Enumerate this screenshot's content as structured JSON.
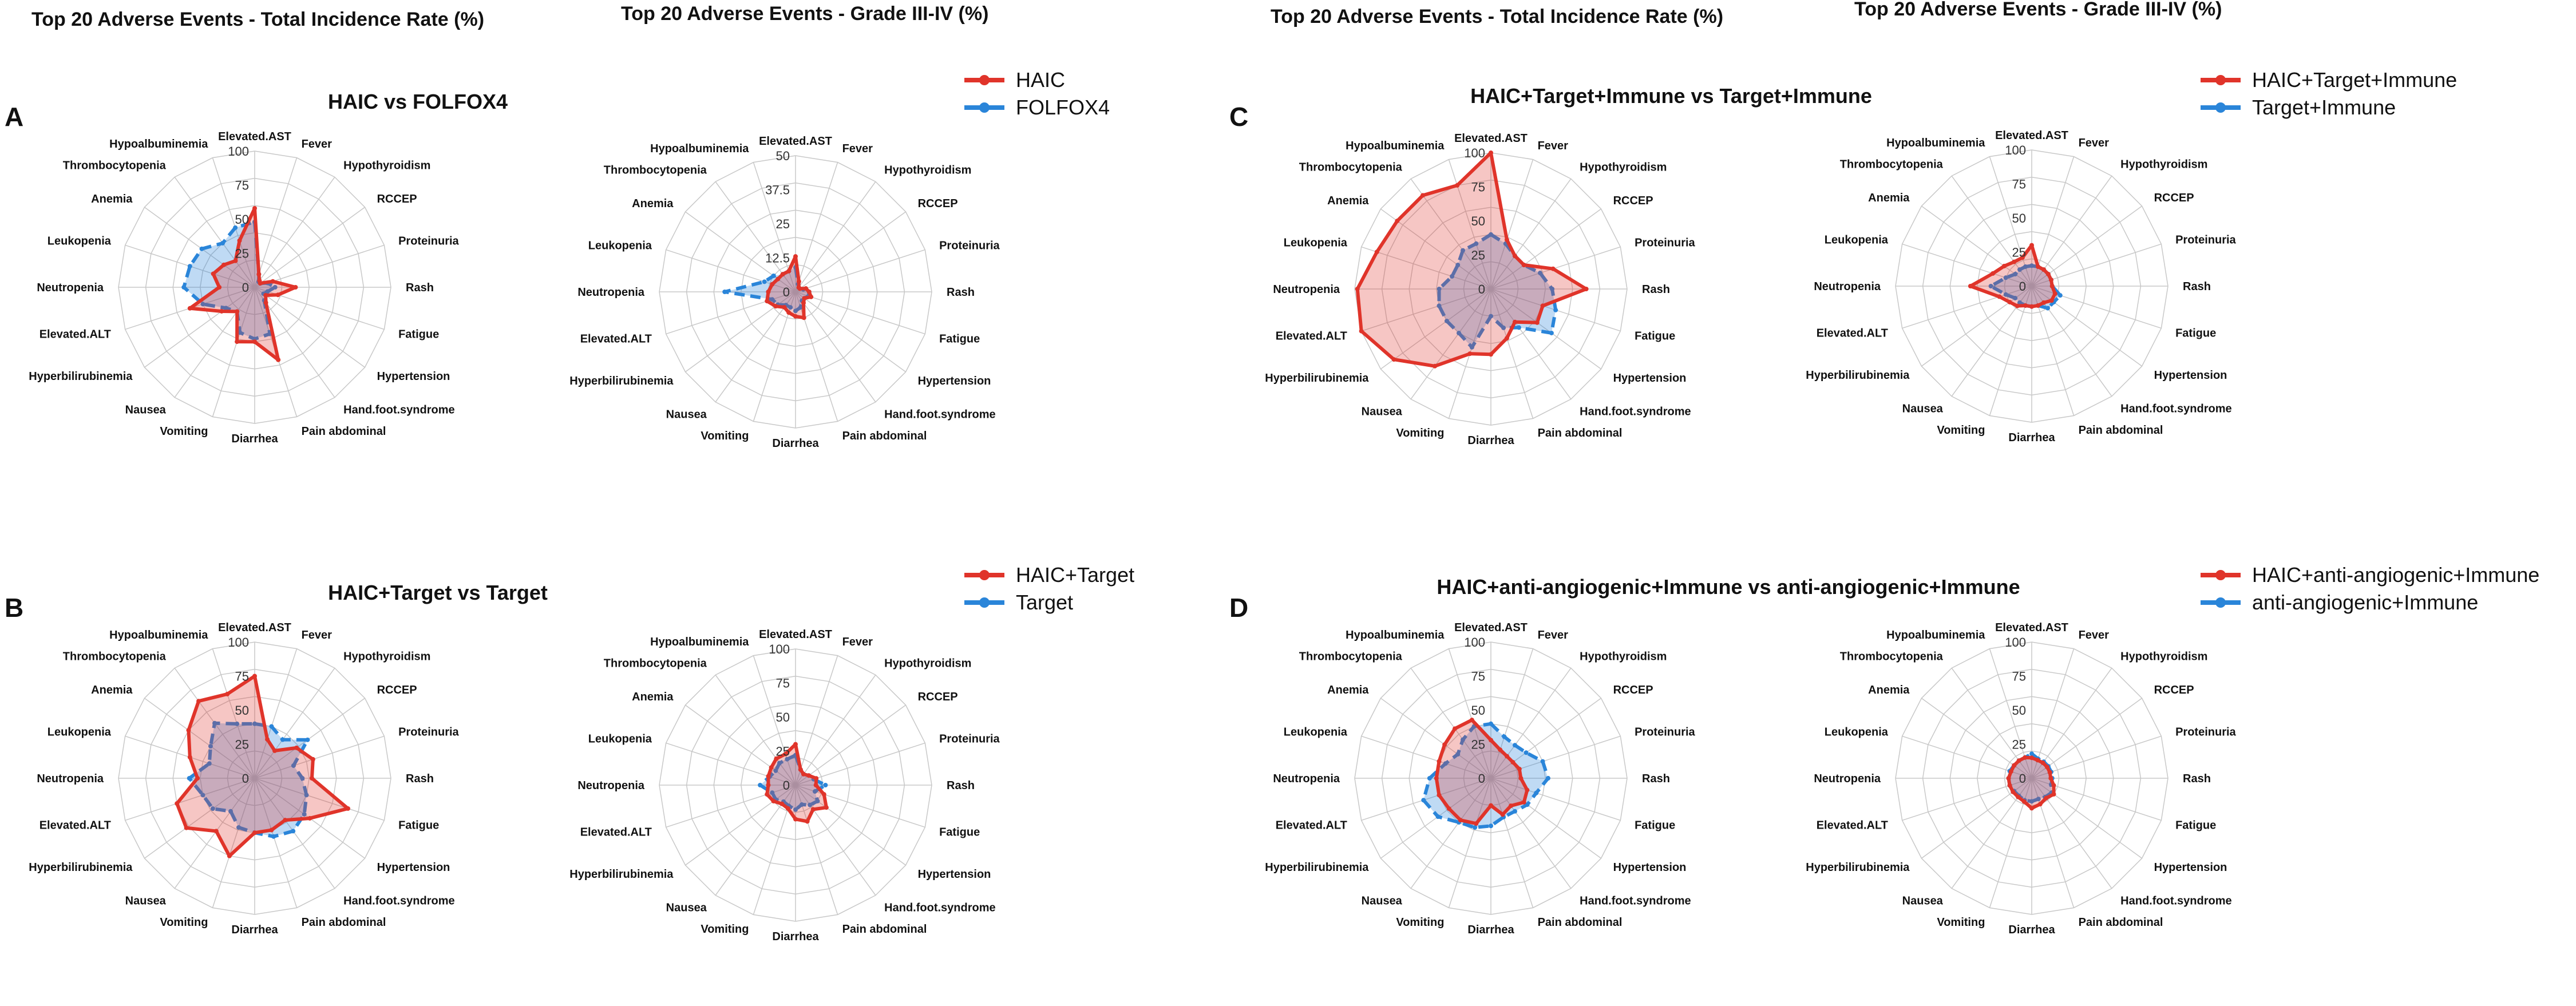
{
  "headers": {
    "left_total": "Top 20 Adverse Events - Total Incidence Rate (%)",
    "left_grade": "Top 20 Adverse Events - Grade III-IV (%)",
    "right_total": "Top 20 Adverse Events - Total Incidence Rate (%)",
    "right_grade": "Top 20 Adverse Events - Grade III-IV (%)"
  },
  "colors": {
    "group1": "#e0342a",
    "group2": "#2a85d9",
    "grid": "#c8c8c8"
  },
  "categories": [
    "Elevated.AST",
    "Fever",
    "Hypothyroidism",
    "RCCEP",
    "Proteinuria",
    "Rash",
    "Fatigue",
    "Hypertension",
    "Hand.foot.syndrome",
    "Pain abdominal",
    "Diarrhea",
    "Vomiting",
    "Nausea",
    "Hyperbilirubinemia",
    "Elevated.ALT",
    "Neutropenia",
    "Leukopenia",
    "Anemia",
    "Thrombocytopenia",
    "Hypoalbuminemia"
  ],
  "chart_data": [
    {
      "panel": "A",
      "title": "HAIC vs FOLFOX4",
      "legend": [
        "HAIC",
        "FOLFOX4"
      ],
      "charts": [
        {
          "type": "radar",
          "metric": "Total Incidence Rate (%)",
          "rmax": 100,
          "tick_labels": [
            "0",
            "25",
            "50",
            "75",
            "100"
          ],
          "series": [
            {
              "name": "HAIC",
              "values": [
                58,
                10,
                6,
                5,
                14,
                30,
                18,
                10,
                14,
                56,
                40,
                42,
                22,
                30,
                50,
                26,
                32,
                28,
                24,
                36
              ]
            },
            {
              "name": "FOLFOX4",
              "values": [
                48,
                10,
                5,
                5,
                10,
                15,
                10,
                8,
                12,
                36,
                38,
                35,
                22,
                26,
                40,
                52,
                50,
                48,
                40,
                46
              ]
            }
          ]
        },
        {
          "type": "radar",
          "metric": "Grade III-IV (%)",
          "rmax": 50,
          "tick_labels": [
            "0",
            "12.5",
            "25",
            "37.5",
            "50"
          ],
          "series": [
            {
              "name": "HAIC",
              "values": [
                13,
                4,
                2,
                2,
                4,
                5,
                6,
                4,
                5,
                10,
                9,
                8,
                7,
                9,
                11,
                10,
                9,
                8,
                8,
                8
              ]
            },
            {
              "name": "FOLFOX4",
              "values": [
                9,
                3,
                2,
                2,
                3,
                5,
                5,
                4,
                4,
                6,
                7,
                6,
                6,
                8,
                9,
                26,
                12,
                10,
                8,
                8
              ]
            }
          ]
        }
      ]
    },
    {
      "panel": "B",
      "title": "HAIC+Target vs Target",
      "legend": [
        "HAIC+Target",
        "Target"
      ],
      "charts": [
        {
          "type": "radar",
          "metric": "Total Incidence Rate (%)",
          "rmax": 100,
          "tick_labels": [
            "0",
            "25",
            "50",
            "75",
            "100"
          ],
          "series": [
            {
              "name": "HAIC+Target",
              "values": [
                75,
                30,
                25,
                38,
                45,
                42,
                72,
                50,
                38,
                40,
                40,
                60,
                48,
                62,
                60,
                42,
                50,
                60,
                70,
                65
              ]
            },
            {
              "name": "Target",
              "values": [
                40,
                40,
                35,
                48,
                30,
                35,
                40,
                45,
                48,
                45,
                40,
                38,
                30,
                38,
                40,
                48,
                35,
                40,
                50,
                42
              ]
            }
          ]
        },
        {
          "type": "radar",
          "metric": "Grade III-IV (%)",
          "rmax": 100,
          "tick_labels": [
            "0",
            "25",
            "50",
            "75",
            "100"
          ],
          "series": [
            {
              "name": "HAIC+Target",
              "values": [
                30,
                12,
                10,
                12,
                16,
                15,
                22,
                28,
                22,
                28,
                25,
                18,
                17,
                20,
                22,
                20,
                21,
                22,
                24,
                24
              ]
            },
            {
              "name": "Target",
              "values": [
                22,
                12,
                10,
                12,
                14,
                22,
                15,
                20,
                18,
                15,
                18,
                16,
                15,
                18,
                18,
                26,
                20,
                18,
                20,
                20
              ]
            }
          ]
        }
      ]
    },
    {
      "panel": "C",
      "title": "HAIC+Target+Immune vs Target+Immune",
      "legend": [
        "HAIC+Target+Immune",
        "Target+Immune"
      ],
      "charts": [
        {
          "type": "radar",
          "metric": "Total Incidence Rate (%)",
          "rmax": 100,
          "tick_labels": [
            "0",
            "25",
            "50",
            "75",
            "100"
          ],
          "series": [
            {
              "name": "HAIC+Target+Immune",
              "values": [
                100,
                38,
                30,
                30,
                48,
                70,
                40,
                42,
                30,
                38,
                48,
                50,
                70,
                88,
                100,
                98,
                88,
                85,
                85,
                80
              ]
            },
            {
              "name": "Target+Immune",
              "values": [
                40,
                35,
                30,
                30,
                38,
                45,
                50,
                55,
                35,
                30,
                20,
                45,
                40,
                40,
                40,
                38,
                30,
                30,
                35,
                35
              ]
            }
          ]
        },
        {
          "type": "radar",
          "metric": "Grade III-IV (%)",
          "rmax": 100,
          "tick_labels": [
            "0",
            "25",
            "50",
            "75",
            "100"
          ],
          "series": [
            {
              "name": "HAIC+Target+Immune",
              "values": [
                30,
                15,
                15,
                15,
                15,
                15,
                18,
                18,
                15,
                15,
                15,
                15,
                18,
                20,
                25,
                45,
                30,
                25,
                22,
                22
              ]
            },
            {
              "name": "Target+Immune",
              "values": [
                15,
                15,
                15,
                15,
                15,
                15,
                22,
                20,
                20,
                15,
                15,
                15,
                15,
                15,
                20,
                30,
                20,
                15,
                15,
                15
              ]
            }
          ]
        }
      ]
    },
    {
      "panel": "D",
      "title": "HAIC+anti-angiogenic+Immune vs anti-angiogenic+Immune",
      "legend": [
        "HAIC+anti-angiogenic+Immune",
        "anti-angiogenic+Immune"
      ],
      "charts": [
        {
          "type": "radar",
          "metric": "Total Incidence Rate (%)",
          "rmax": 100,
          "tick_labels": [
            "0",
            "25",
            "50",
            "75",
            "100"
          ],
          "series": [
            {
              "name": "HAIC+anti-angiogenic+Immune",
              "values": [
                28,
                22,
                20,
                20,
                22,
                22,
                28,
                30,
                25,
                28,
                20,
                35,
                38,
                38,
                40,
                40,
                40,
                42,
                45,
                45
              ]
            },
            {
              "name": "anti-angiogenic+Immune",
              "values": [
                40,
                32,
                30,
                32,
                40,
                42,
                35,
                33,
                30,
                30,
                35,
                38,
                40,
                48,
                52,
                45,
                35,
                30,
                35,
                40
              ]
            }
          ]
        },
        {
          "type": "radar",
          "metric": "Grade III-IV (%)",
          "rmax": 100,
          "tick_labels": [
            "0",
            "25",
            "50",
            "75",
            "100"
          ],
          "series": [
            {
              "name": "HAIC+anti-angiogenic+Immune",
              "values": [
                15,
                14,
                14,
                14,
                14,
                14,
                17,
                20,
                18,
                20,
                22,
                18,
                17,
                17,
                17,
                17,
                16,
                16,
                16,
                16
              ]
            },
            {
              "name": "anti-angiogenic+Immune",
              "values": [
                18,
                15,
                15,
                15,
                15,
                15,
                15,
                18,
                17,
                16,
                17,
                17,
                16,
                16,
                17,
                17,
                17,
                16,
                16,
                16
              ]
            }
          ]
        }
      ]
    }
  ]
}
